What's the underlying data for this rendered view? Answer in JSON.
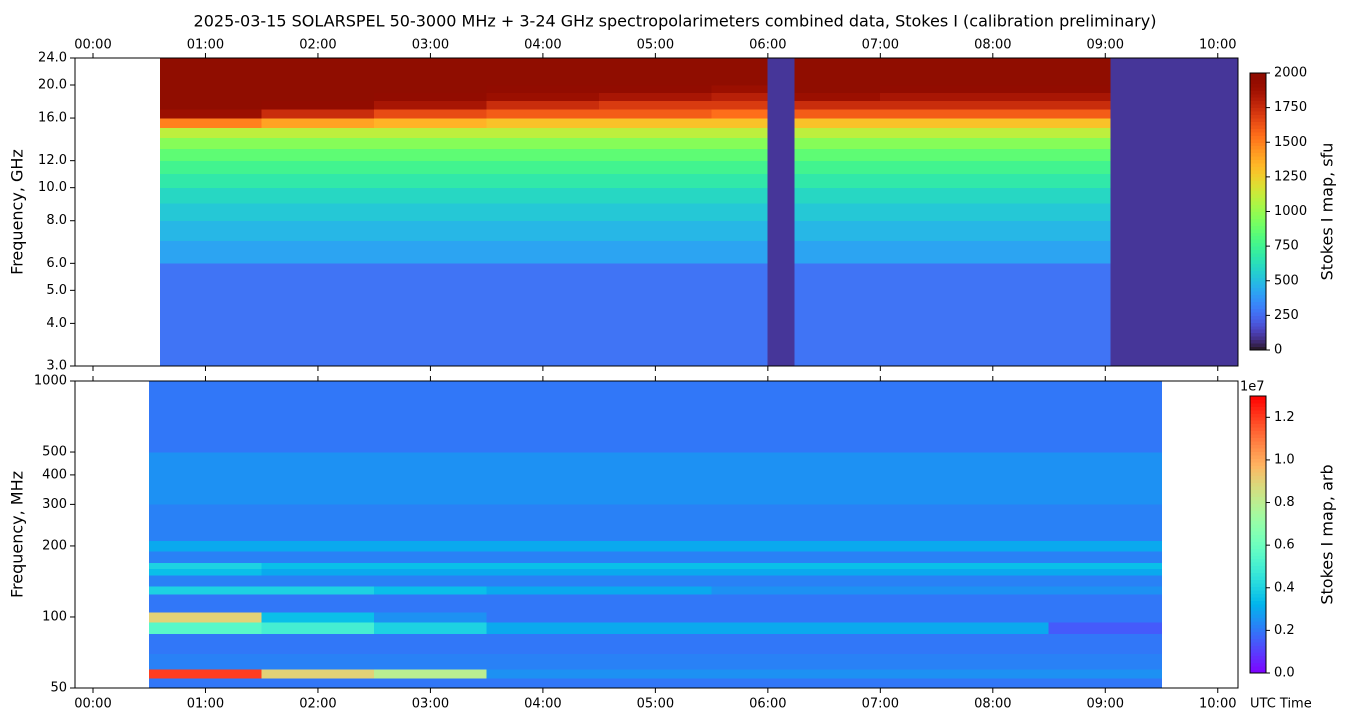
{
  "chart_data": [
    {
      "type": "heatmap",
      "title": "2025-03-15  SOLARSPEL  50-3000 MHz  +  3-24 GHz  spectropolarimeters combined data,  Stokes I  (calibration preliminary)",
      "y_label": "Frequency, GHz",
      "colorbar_label": "Stokes I map, sfu",
      "colormap": "turbo",
      "ylog": true,
      "xaxis_position": "top",
      "xlim": [
        -0.16,
        10.18
      ],
      "ylim": [
        3,
        24
      ],
      "clim": [
        0,
        2000
      ],
      "xticks": [
        {
          "value": 0,
          "label": "00:00"
        },
        {
          "value": 1,
          "label": "01:00"
        },
        {
          "value": 2,
          "label": "02:00"
        },
        {
          "value": 3,
          "label": "03:00"
        },
        {
          "value": 4,
          "label": "04:00"
        },
        {
          "value": 5,
          "label": "05:00"
        },
        {
          "value": 6,
          "label": "06:00"
        },
        {
          "value": 7,
          "label": "07:00"
        },
        {
          "value": 8,
          "label": "08:00"
        },
        {
          "value": 9,
          "label": "09:00"
        },
        {
          "value": 10,
          "label": "10:00"
        }
      ],
      "yticks": [
        {
          "value": 3,
          "label": "3.0"
        },
        {
          "value": 4,
          "label": "4.0"
        },
        {
          "value": 5,
          "label": "5.0"
        },
        {
          "value": 6,
          "label": "6.0"
        },
        {
          "value": 8,
          "label": "8.0"
        },
        {
          "value": 10,
          "label": "10.0"
        },
        {
          "value": 12,
          "label": "12.0"
        },
        {
          "value": 16,
          "label": "16.0"
        },
        {
          "value": 20,
          "label": "20.0"
        },
        {
          "value": 24,
          "label": "24.0"
        }
      ],
      "cticks": [
        0,
        250,
        500,
        750,
        1000,
        1250,
        1500,
        1750,
        2000
      ],
      "x_edges": [
        0.6,
        1.5,
        2.5,
        3.5,
        4.5,
        5.5,
        6.0,
        6.24,
        7,
        8,
        9.05,
        10.18
      ],
      "y_edges": [
        3,
        6,
        7,
        8,
        9,
        10,
        11,
        12,
        13,
        14,
        15,
        16,
        17,
        18,
        19,
        20,
        22,
        24
      ],
      "values": [
        [
          280,
          280,
          280,
          280,
          280,
          280,
          100,
          280,
          280,
          280,
          100
        ],
        [
          420,
          420,
          420,
          420,
          420,
          420,
          100,
          420,
          420,
          420,
          100
        ],
        [
          480,
          480,
          480,
          480,
          480,
          480,
          100,
          480,
          480,
          480,
          100
        ],
        [
          540,
          540,
          540,
          540,
          540,
          540,
          100,
          540,
          540,
          540,
          100
        ],
        [
          600,
          600,
          600,
          600,
          600,
          600,
          100,
          600,
          600,
          600,
          100
        ],
        [
          680,
          680,
          680,
          680,
          680,
          680,
          100,
          680,
          680,
          680,
          100
        ],
        [
          760,
          760,
          760,
          760,
          760,
          760,
          100,
          760,
          760,
          760,
          100
        ],
        [
          850,
          850,
          850,
          850,
          850,
          850,
          100,
          850,
          850,
          850,
          100
        ],
        [
          960,
          960,
          960,
          960,
          960,
          960,
          100,
          960,
          960,
          960,
          100
        ],
        [
          1100,
          1100,
          1100,
          1100,
          1100,
          1100,
          100,
          1100,
          1100,
          1100,
          100
        ],
        [
          1500,
          1400,
          1350,
          1300,
          1300,
          1300,
          100,
          1300,
          1300,
          1300,
          100
        ],
        [
          1900,
          1750,
          1650,
          1600,
          1600,
          1550,
          100,
          1600,
          1600,
          1600,
          100
        ],
        [
          2000,
          1950,
          1850,
          1750,
          1700,
          1700,
          100,
          1750,
          1750,
          1750,
          100
        ],
        [
          2000,
          2000,
          1950,
          1900,
          1850,
          1800,
          100,
          1900,
          1850,
          1850,
          100
        ],
        [
          2000,
          2000,
          2000,
          1950,
          1950,
          1900,
          100,
          2000,
          1950,
          1950,
          100
        ],
        [
          2000,
          2000,
          2000,
          2000,
          2000,
          2000,
          100,
          2000,
          2000,
          2000,
          100
        ],
        [
          2000,
          2000,
          2000,
          2000,
          2000,
          2000,
          100,
          2000,
          2000,
          2000,
          100
        ]
      ]
    },
    {
      "type": "heatmap",
      "y_label": "Frequency, MHz",
      "x_label": "UTC Time",
      "colorbar_label": "Stokes I map, arb",
      "colorbar_offset_label": "1e7",
      "colormap": "rainbow",
      "ylog": true,
      "xaxis_position": "bottom",
      "xlim": [
        -0.16,
        10.18
      ],
      "ylim": [
        50,
        1000
      ],
      "clim": [
        0,
        1.3
      ],
      "xticks": [
        {
          "value": 0,
          "label": "00:00"
        },
        {
          "value": 1,
          "label": "01:00"
        },
        {
          "value": 2,
          "label": "02:00"
        },
        {
          "value": 3,
          "label": "03:00"
        },
        {
          "value": 4,
          "label": "04:00"
        },
        {
          "value": 5,
          "label": "05:00"
        },
        {
          "value": 6,
          "label": "06:00"
        },
        {
          "value": 7,
          "label": "07:00"
        },
        {
          "value": 8,
          "label": "08:00"
        },
        {
          "value": 9,
          "label": "09:00"
        },
        {
          "value": 10,
          "label": "10:00"
        }
      ],
      "yticks": [
        50,
        100,
        200,
        300,
        400,
        500,
        1000
      ],
      "cticks": [
        {
          "value": 0,
          "label": "0.0"
        },
        0.2,
        0.4,
        0.6,
        0.8,
        {
          "value": 1,
          "label": "1.0"
        },
        1.2
      ],
      "x_edges": [
        0.5,
        1.5,
        2.5,
        3.5,
        4.5,
        5.5,
        6.5,
        7.5,
        8.5,
        9.5
      ],
      "y_edges": [
        50,
        55,
        60,
        70,
        85,
        95,
        105,
        115,
        125,
        135,
        150,
        160,
        170,
        190,
        210,
        300,
        500,
        1000
      ],
      "values": [
        [
          0.2,
          0.2,
          0.2,
          0.2,
          0.2,
          0.2,
          0.2,
          0.2,
          0.2
        ],
        [
          1.2,
          0.9,
          0.8,
          0.25,
          0.25,
          0.25,
          0.25,
          0.25,
          0.25
        ],
        [
          0.22,
          0.22,
          0.22,
          0.22,
          0.22,
          0.22,
          0.22,
          0.22,
          0.22
        ],
        [
          0.2,
          0.2,
          0.2,
          0.2,
          0.2,
          0.2,
          0.2,
          0.2,
          0.2
        ],
        [
          0.55,
          0.5,
          0.4,
          0.3,
          0.3,
          0.3,
          0.3,
          0.3,
          0.15
        ],
        [
          0.9,
          0.35,
          0.25,
          0.2,
          0.2,
          0.2,
          0.2,
          0.2,
          0.2
        ],
        [
          0.2,
          0.2,
          0.2,
          0.2,
          0.2,
          0.2,
          0.2,
          0.2,
          0.2
        ],
        [
          0.2,
          0.2,
          0.2,
          0.2,
          0.2,
          0.2,
          0.2,
          0.2,
          0.2
        ],
        [
          0.4,
          0.4,
          0.35,
          0.3,
          0.3,
          0.25,
          0.25,
          0.25,
          0.25
        ],
        [
          0.22,
          0.22,
          0.22,
          0.22,
          0.22,
          0.22,
          0.22,
          0.22,
          0.22
        ],
        [
          0.35,
          0.3,
          0.3,
          0.3,
          0.3,
          0.3,
          0.3,
          0.3,
          0.3
        ],
        [
          0.4,
          0.35,
          0.35,
          0.35,
          0.35,
          0.35,
          0.35,
          0.35,
          0.35
        ],
        [
          0.22,
          0.22,
          0.22,
          0.22,
          0.22,
          0.22,
          0.22,
          0.22,
          0.22
        ],
        [
          0.3,
          0.3,
          0.3,
          0.3,
          0.3,
          0.3,
          0.3,
          0.3,
          0.3
        ],
        [
          0.22,
          0.22,
          0.22,
          0.22,
          0.22,
          0.22,
          0.22,
          0.22,
          0.22
        ],
        [
          0.25,
          0.25,
          0.25,
          0.25,
          0.25,
          0.25,
          0.25,
          0.25,
          0.25
        ],
        [
          0.2,
          0.2,
          0.2,
          0.2,
          0.2,
          0.2,
          0.2,
          0.2,
          0.2
        ]
      ]
    }
  ]
}
